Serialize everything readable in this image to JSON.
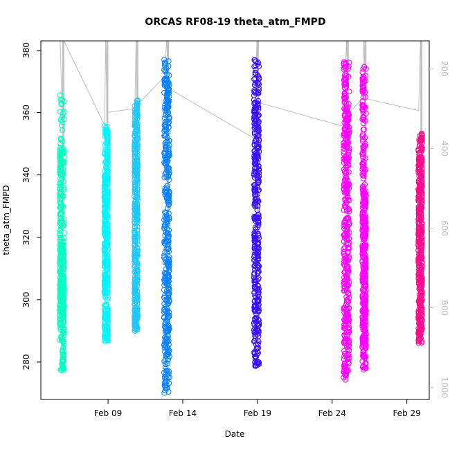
{
  "chart_data": {
    "type": "scatter",
    "title": "ORCAS RF08-19 theta_atm_FMPD",
    "xlabel": "Date",
    "ylabel": "theta_atm_FMPD",
    "x_range": [
      "2016-02-04T12:00",
      "2016-03-01T12:00"
    ],
    "ylim": [
      268,
      383
    ],
    "x_ticks": [
      {
        "date": "2016-02-09",
        "label": "Feb 09"
      },
      {
        "date": "2016-02-14",
        "label": "Feb 14"
      },
      {
        "date": "2016-02-19",
        "label": "Feb 19"
      },
      {
        "date": "2016-02-24",
        "label": "Feb 24"
      },
      {
        "date": "2016-02-29",
        "label": "Feb 29"
      }
    ],
    "y_ticks": [
      280,
      300,
      320,
      340,
      360,
      380
    ],
    "right_axis": {
      "range_reversed": [
        1030,
        130
      ],
      "ticks": [
        200,
        400,
        600,
        800,
        1000
      ],
      "color": "#bfbfbf"
    },
    "series": [
      {
        "color": "#00ffc0",
        "flights": [
          {
            "start": "2016-02-05T18:30",
            "end": "2016-02-06T01:30",
            "ymin": 277,
            "ymax": 367,
            "dense": [
              [
                0.0,
                0.25,
                290,
                349
              ],
              [
                0.55,
                1.0,
                277,
                320
              ]
            ]
          }
        ]
      },
      {
        "color": "#00f5ff",
        "flights": [
          {
            "start": "2016-02-08T18:00",
            "end": "2016-02-08T23:45",
            "ymin": 286.5,
            "ymax": 356.5,
            "dense": [
              [
                0.0,
                0.3,
                287,
                340
              ],
              [
                0.7,
                1.0,
                287,
                356
              ]
            ]
          }
        ]
      },
      {
        "color": "#1ec8ff",
        "flights": [
          {
            "start": "2016-02-10T18:30",
            "end": "2016-02-10T23:30",
            "ymin": 289.5,
            "ymax": 364,
            "dense": [
              [
                0.0,
                0.2,
                290,
                356
              ],
              [
                0.8,
                1.0,
                290,
                364
              ]
            ]
          }
        ]
      },
      {
        "color": "#0a82ff",
        "flights": [
          {
            "start": "2016-02-12T18:00",
            "end": "2016-02-13T02:30",
            "ymin": 269.5,
            "ymax": 377,
            "dense": [
              [
                0.0,
                0.6,
                270,
                377
              ],
              [
                0.6,
                1.0,
                280,
                370
              ]
            ]
          }
        ]
      },
      {
        "color": "#3a10ff",
        "flights": [
          {
            "start": "2016-02-18T18:30",
            "end": "2016-02-19T02:30",
            "ymin": 277,
            "ymax": 378,
            "dense": [
              [
                0.0,
                0.35,
                277,
                378
              ],
              [
                0.65,
                1.0,
                277,
                372
              ]
            ]
          }
        ]
      },
      {
        "color": "#ff00ff",
        "flights": [
          {
            "start": "2016-02-24T18:30",
            "end": "2016-02-25T03:30",
            "ymin": 274,
            "ymax": 378,
            "dense": [
              [
                0.0,
                0.5,
                274,
                378
              ],
              [
                0.5,
                1.0,
                280,
                362
              ]
            ]
          },
          {
            "start": "2016-02-26T00:30",
            "end": "2016-02-26T06:30",
            "ymin": 277.5,
            "ymax": 375,
            "dense": [
              [
                0.0,
                0.3,
                278,
                375
              ],
              [
                0.5,
                1.0,
                278,
                336
              ]
            ]
          }
        ]
      },
      {
        "color": "#ff0a8c",
        "flights": [
          {
            "start": "2016-02-29T18:30",
            "end": "2016-03-01T00:30",
            "ymin": 286,
            "ymax": 354,
            "dense": [
              [
                0.0,
                0.4,
                286,
                350
              ],
              [
                0.6,
                1.0,
                290,
                354
              ]
            ]
          }
        ]
      }
    ],
    "pressure_trace": {
      "color": "#bdbdbd",
      "points": [
        [
          "2016-02-05T19:00",
          130
        ],
        [
          "2016-02-05T22:00",
          300
        ],
        [
          "2016-02-06T01:00",
          130
        ],
        [
          "2016-02-08T18:30",
          342
        ],
        [
          "2016-02-08T20:00",
          130
        ],
        [
          "2016-02-08T22:30",
          310
        ],
        [
          "2016-02-10T19:00",
          300
        ],
        [
          "2016-02-10T21:00",
          130
        ],
        [
          "2016-02-10T23:30",
          290
        ],
        [
          "2016-02-12T18:30",
          220
        ],
        [
          "2016-02-12T22:00",
          130
        ],
        [
          "2016-02-13T02:00",
          250
        ],
        [
          "2016-02-18T19:00",
          375
        ],
        [
          "2016-02-18T23:00",
          130
        ],
        [
          "2016-02-19T02:00",
          285
        ],
        [
          "2016-02-24T19:00",
          345
        ],
        [
          "2016-02-24T23:00",
          130
        ],
        [
          "2016-02-25T03:00",
          310
        ],
        [
          "2016-02-26T01:00",
          275
        ],
        [
          "2016-02-26T03:00",
          130
        ],
        [
          "2016-02-26T06:00",
          275
        ],
        [
          "2016-02-29T19:00",
          305
        ],
        [
          "2016-02-29T22:00",
          130
        ],
        [
          "2016-03-01T00:00",
          290
        ]
      ]
    }
  }
}
